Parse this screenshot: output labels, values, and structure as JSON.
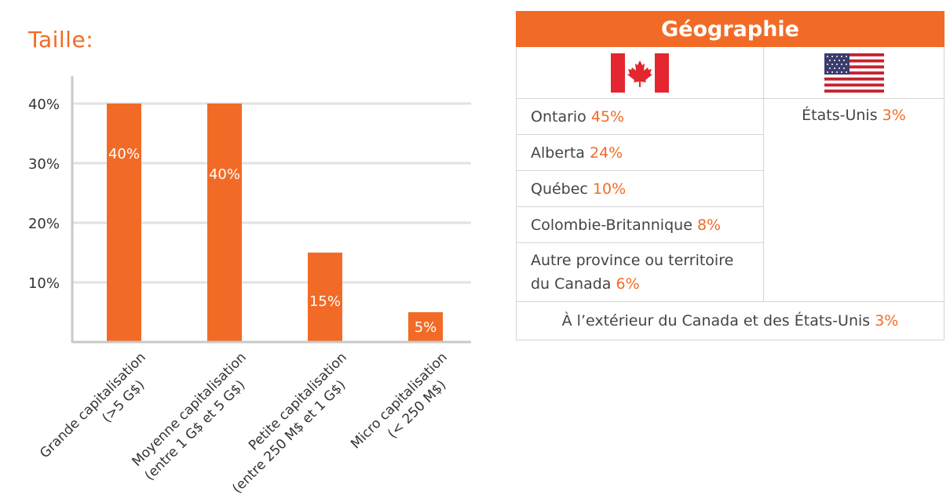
{
  "chart_data": {
    "type": "bar",
    "title": "Taille:",
    "categories": [
      [
        "Grande capitalisation",
        "(>5 G$)"
      ],
      [
        "Moyenne capitalisation",
        "(entre 1 G$ et 5 G$)"
      ],
      [
        "Petite capitalisation",
        "(entre 250 M$ et 1 G$)"
      ],
      [
        "Micro capitalisation",
        "(< 250 M$)"
      ]
    ],
    "values": [
      40,
      40,
      15,
      5
    ],
    "data_labels": [
      "40%",
      "40%",
      "15%",
      "5%"
    ],
    "yticks": [
      "10%",
      "20%",
      "30%",
      "40%"
    ],
    "ytick_values": [
      10,
      20,
      30,
      40
    ],
    "ylim": [
      0,
      40
    ],
    "grid": true,
    "bar_color": "#f26b26"
  },
  "geography": {
    "header": "Géographie",
    "canada_flag_icon": "canada-flag-icon",
    "usa_flag_icon": "usa-flag-icon",
    "canada": [
      {
        "name": "Ontario",
        "pct": "45%"
      },
      {
        "name": "Alberta",
        "pct": "24%"
      },
      {
        "name": "Québec",
        "pct": "10%"
      },
      {
        "name": "Colombie-Britannique",
        "pct": "8%"
      },
      {
        "name": "Autre province ou territoire du Canada",
        "pct": "6%"
      }
    ],
    "usa": {
      "name": "États-Unis",
      "pct": "3%"
    },
    "outside": {
      "name": "À l’extérieur du Canada et des États-Unis",
      "pct": "3%"
    }
  },
  "colors": {
    "accent": "#f26b26",
    "grid": "#e2e2e2",
    "axis": "#c9c9c9"
  }
}
